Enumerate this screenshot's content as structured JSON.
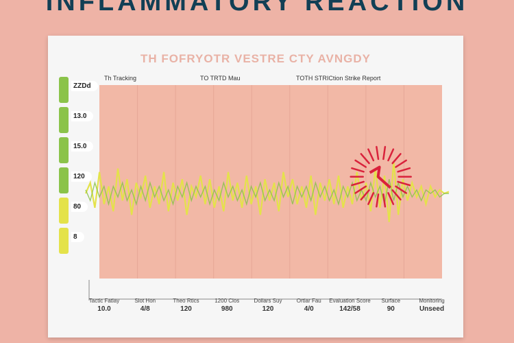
{
  "headline": "INFLAMMATORY REACTION",
  "card": {
    "title": "TH FOFRYOTR VESTRE CTY AVNGDY",
    "subtitles": [
      "Th Tracking",
      "TO TRTD Mau",
      "TOTH STRICtion Strike Report"
    ]
  },
  "legend_pills": [
    {
      "label": "ZZDd",
      "color": "#8bc34a"
    },
    {
      "label": "13.0",
      "color": "#8bc34a"
    },
    {
      "label": "15.0",
      "color": "#8bc34a"
    },
    {
      "label": "120",
      "color": "#8bc34a"
    },
    {
      "label": "80",
      "color": "#e4e24a"
    },
    {
      "label": "8",
      "color": "#e4e24a"
    }
  ],
  "bottom_labels": [
    {
      "top": "Tactic Fatlay",
      "bottom": "10.0"
    },
    {
      "top": "Slot Hon",
      "bottom": "4/8"
    },
    {
      "top": "Theo Rtics",
      "bottom": "120"
    },
    {
      "top": "1200 Clos",
      "bottom": "980"
    },
    {
      "top": "Dollars Suy",
      "bottom": "120"
    },
    {
      "top": "Ortiar Fau",
      "bottom": "4/0"
    },
    {
      "top": "Evaluation Score",
      "bottom": "142/58"
    },
    {
      "top": "Surface",
      "bottom": "90"
    },
    {
      "top": "Monitoring",
      "bottom": "Unseed"
    }
  ],
  "colors": {
    "page_bg": "#eeb3a6",
    "card_bg": "#f6f6f6",
    "plot_bg": "#f2b8a6",
    "signal": "#e4e24a",
    "signal_alt": "#8bc34a",
    "burst": "#d9223b",
    "headline": "#123f55"
  },
  "chart_data": {
    "type": "line",
    "title": "TH FOFRYOTR VESTRE CTY AVNGDY",
    "xlabel": "",
    "ylabel": "",
    "grid": true,
    "ylim": [
      -1,
      1
    ],
    "x": [
      0,
      1,
      2,
      3,
      4,
      5,
      6,
      7,
      8,
      9,
      10,
      11,
      12,
      13,
      14,
      15,
      16,
      17,
      18,
      19,
      20,
      21,
      22,
      23,
      24,
      25,
      26,
      27,
      28,
      29,
      30,
      31,
      32,
      33,
      34,
      35,
      36,
      37,
      38,
      39,
      40,
      41,
      42,
      43,
      44,
      45,
      46,
      47,
      48,
      49,
      50,
      51,
      52,
      53,
      54,
      55,
      56,
      57,
      58,
      59,
      60,
      61,
      62,
      63,
      64,
      65,
      66,
      67,
      68,
      69,
      70,
      71,
      72,
      73,
      74,
      75,
      76,
      77,
      78,
      79
    ],
    "series": [
      {
        "values": [
          0.0,
          0.3,
          -0.4,
          0.6,
          -0.3,
          0.2,
          -0.5,
          0.7,
          -0.2,
          0.4,
          -0.6,
          0.3,
          -0.1,
          0.5,
          -0.4,
          0.2,
          -0.3,
          0.6,
          -0.5,
          0.3,
          -0.2,
          0.4,
          -0.6,
          0.2,
          -0.1,
          0.5,
          -0.3,
          0.4,
          -0.4,
          0.2,
          -0.5,
          0.6,
          -0.2,
          0.3,
          -0.4,
          0.5,
          -0.3,
          0.2,
          -0.6,
          0.4,
          -0.2,
          0.3,
          -0.5,
          0.6,
          -0.1,
          0.4,
          -0.3,
          0.2,
          -0.4,
          0.5,
          -0.6,
          0.3,
          -0.2,
          0.4,
          -0.3,
          0.5,
          -0.4,
          0.2,
          -0.3,
          0.6,
          -0.2,
          0.3,
          -0.5,
          0.7,
          -0.4,
          0.5,
          -0.8,
          0.9,
          -0.6,
          0.4,
          -0.2,
          0.3,
          -0.1,
          0.2,
          -0.3,
          0.2,
          -0.1,
          0.1,
          0.0,
          0.05
        ]
      },
      {
        "values": [
          0.1,
          -0.2,
          0.3,
          -0.1,
          0.2,
          -0.3,
          0.2,
          -0.1,
          0.3,
          -0.2,
          0.1,
          -0.3,
          0.2,
          -0.2,
          0.3,
          -0.1,
          0.2,
          -0.2,
          0.1,
          -0.3,
          0.2,
          -0.1,
          0.3,
          -0.2,
          0.2,
          -0.1,
          0.2,
          -0.3,
          0.1,
          -0.2,
          0.3,
          -0.1,
          0.2,
          -0.2,
          0.1,
          -0.3,
          0.2,
          -0.1,
          0.3,
          -0.2,
          0.1,
          -0.2,
          0.3,
          -0.1,
          0.2,
          -0.3,
          0.2,
          -0.1,
          0.2,
          -0.2,
          0.3,
          -0.1,
          0.2,
          -0.2,
          0.1,
          -0.3,
          0.2,
          -0.1,
          0.3,
          -0.2,
          0.1,
          -0.2,
          0.3,
          -0.1,
          0.2,
          -0.3,
          0.4,
          -0.2,
          0.3,
          -0.1,
          0.2,
          -0.1,
          0.1,
          -0.2,
          0.1,
          0.0,
          0.1,
          -0.1,
          0.0,
          0.0
        ]
      }
    ],
    "burst_at_index": 63
  }
}
